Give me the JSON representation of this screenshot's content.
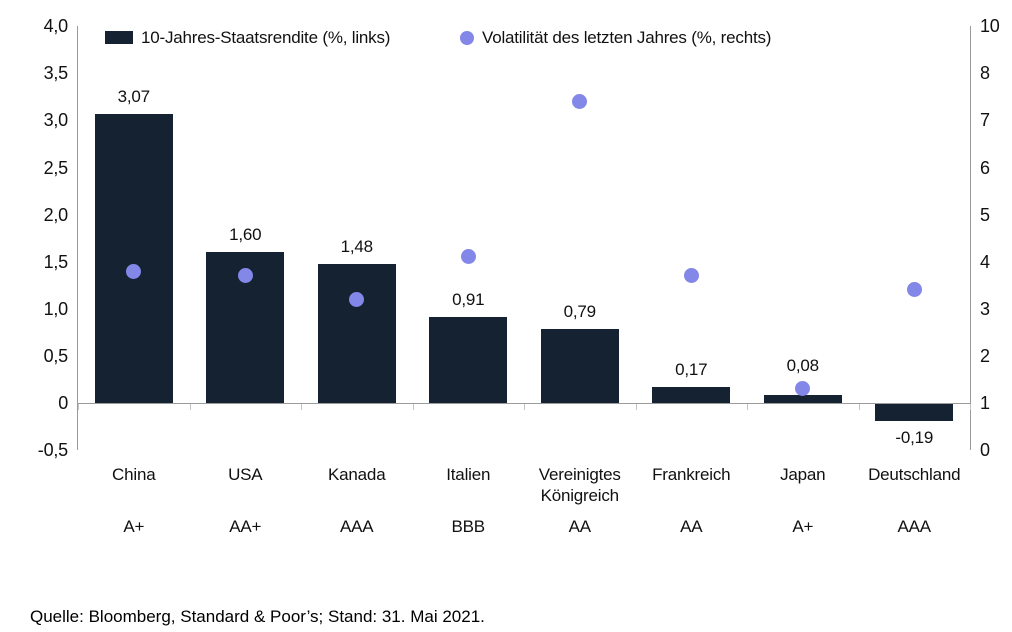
{
  "legend": {
    "bar_series_label": "10-Jahres-Staatsrendite (%, links)",
    "dot_series_label": "Volatilität des letzten Jahres (%, rechts)"
  },
  "colors": {
    "bar": "#152232",
    "dot": "#8287e8",
    "axis": "#9b9b9b",
    "text": "#111111"
  },
  "chart_data": {
    "type": "bar",
    "title": "",
    "categories": [
      "China",
      "USA",
      "Kanada",
      "Italien",
      "Vereinigtes Königreich",
      "Frankreich",
      "Japan",
      "Deutschland"
    ],
    "ratings": [
      "A+",
      "AA+",
      "AAA",
      "BBB",
      "AA",
      "AA",
      "A+",
      "AAA"
    ],
    "series": [
      {
        "name": "10-Jahres-Staatsrendite (%, links)",
        "type": "bar",
        "axis": "left",
        "values": [
          3.07,
          1.6,
          1.48,
          0.91,
          0.79,
          0.17,
          0.08,
          -0.19
        ],
        "value_labels": [
          "3,07",
          "1,60",
          "1,48",
          "0,91",
          "0,79",
          "0,17",
          "0,08",
          "-0,19"
        ]
      },
      {
        "name": "Volatilität des letzten Jahres (%, rechts)",
        "type": "scatter",
        "axis": "right",
        "values": [
          3.8,
          3.7,
          3.2,
          4.1,
          7.4,
          3.7,
          1.3,
          3.4
        ]
      }
    ],
    "left_axis": {
      "min": -0.5,
      "max": 4.0,
      "step": 0.5,
      "tick_labels": [
        "4,0",
        "3,5",
        "3,0",
        "2,5",
        "2,0",
        "1,5",
        "1,0",
        "0,5",
        "0",
        "-0,5"
      ]
    },
    "right_axis": {
      "min": 0,
      "max": 10,
      "tick_labels": [
        "10",
        "8",
        "7",
        "6",
        "5",
        "4",
        "3",
        "2",
        "1",
        "0"
      ]
    },
    "legend_position": "top",
    "grid": false
  },
  "footer": {
    "source": "Quelle: Bloomberg, Standard & Poor’s; Stand: 31. Mai 2021."
  }
}
